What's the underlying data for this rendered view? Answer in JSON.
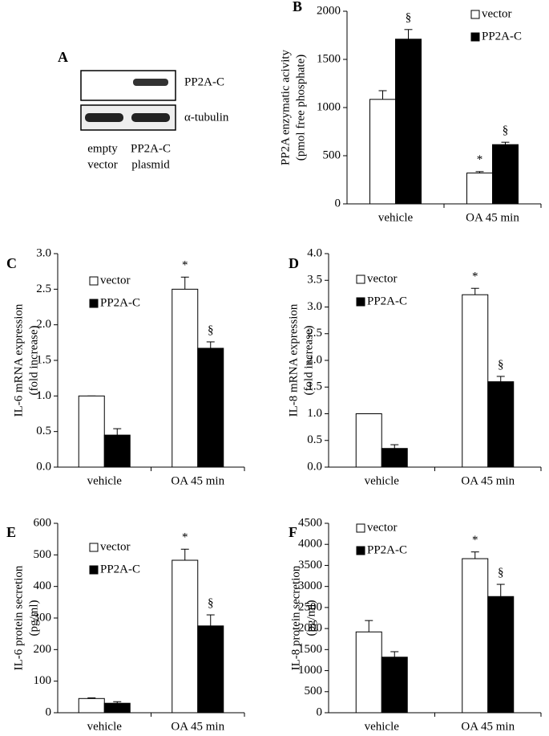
{
  "blot": {
    "label": "A",
    "rows": [
      "PP2A-C",
      "α-tubulin"
    ],
    "lanes": [
      [
        "empty",
        "vector"
      ],
      [
        "PP2A-C",
        "plasmid"
      ]
    ]
  },
  "chart_data": [
    {
      "type": "bar",
      "label": "B",
      "ylabel": [
        "PP2A enzymatic acivity",
        "(pmol free phosphate)"
      ],
      "categories": [
        "vehicle",
        "OA 45 min"
      ],
      "series": [
        {
          "name": "vector",
          "color": "#ffffff",
          "values": [
            1085,
            320
          ],
          "errors": [
            90,
            15
          ],
          "annotations": [
            null,
            "*"
          ]
        },
        {
          "name": "PP2A-C",
          "color": "#000000",
          "values": [
            1710,
            615
          ],
          "errors": [
            100,
            25
          ],
          "annotations": [
            "§",
            "§"
          ]
        }
      ],
      "ylim": [
        0,
        2000
      ],
      "yticks": [
        0,
        500,
        1000,
        1500,
        2000
      ]
    },
    {
      "type": "bar",
      "label": "C",
      "ylabel": [
        "IL-6 mRNA expression",
        "(fold increase)"
      ],
      "categories": [
        "vehicle",
        "OA 45 min"
      ],
      "series": [
        {
          "name": "vector",
          "color": "#ffffff",
          "values": [
            1.0,
            2.5
          ],
          "errors": [
            0,
            0.17
          ],
          "annotations": [
            null,
            "*"
          ]
        },
        {
          "name": "PP2A-C",
          "color": "#000000",
          "values": [
            0.45,
            1.67
          ],
          "errors": [
            0.09,
            0.09
          ],
          "annotations": [
            null,
            "§"
          ]
        }
      ],
      "ylim": [
        0,
        3
      ],
      "yticks": [
        {
          "value": 0,
          "label": "0.0"
        },
        0.5,
        {
          "value": 1,
          "label": "1.0"
        },
        1.5,
        {
          "value": 2,
          "label": "2.0"
        },
        2.5,
        {
          "value": 3,
          "label": "3.0"
        }
      ]
    },
    {
      "type": "bar",
      "label": "D",
      "ylabel": [
        "IL-8 mRNA expression",
        "(fold increase)"
      ],
      "categories": [
        "vehicle",
        "OA 45 min"
      ],
      "series": [
        {
          "name": "vector",
          "color": "#ffffff",
          "values": [
            1.0,
            3.23
          ],
          "errors": [
            0,
            0.12
          ],
          "annotations": [
            null,
            "*"
          ]
        },
        {
          "name": "PP2A-C",
          "color": "#000000",
          "values": [
            0.35,
            1.6
          ],
          "errors": [
            0.07,
            0.1
          ],
          "annotations": [
            null,
            "§"
          ]
        }
      ],
      "ylim": [
        0,
        4
      ],
      "yticks": [
        {
          "value": 0,
          "label": "0.0"
        },
        0.5,
        {
          "value": 1,
          "label": "1.0"
        },
        1.5,
        {
          "value": 2,
          "label": "2.0"
        },
        2.5,
        {
          "value": 3,
          "label": "3.0"
        },
        3.5,
        {
          "value": 4,
          "label": "4.0"
        }
      ]
    },
    {
      "type": "bar",
      "label": "E",
      "ylabel": [
        "IL-6 protein secretion",
        "(pg/ml)"
      ],
      "categories": [
        "vehicle",
        "OA 45 min"
      ],
      "series": [
        {
          "name": "vector",
          "color": "#ffffff",
          "values": [
            45,
            483
          ],
          "errors": [
            2,
            35
          ],
          "annotations": [
            null,
            "*"
          ]
        },
        {
          "name": "PP2A-C",
          "color": "#000000",
          "values": [
            30,
            275
          ],
          "errors": [
            5,
            35
          ],
          "annotations": [
            null,
            "§"
          ]
        }
      ],
      "ylim": [
        0,
        600
      ],
      "yticks": [
        0,
        100,
        200,
        300,
        400,
        500,
        600
      ]
    },
    {
      "type": "bar",
      "label": "F",
      "ylabel": [
        "IL-8 protein secretion",
        "(pg/ml)"
      ],
      "categories": [
        "vehicle",
        "OA 45 min"
      ],
      "series": [
        {
          "name": "vector",
          "color": "#ffffff",
          "values": [
            1920,
            3660
          ],
          "errors": [
            270,
            160
          ],
          "annotations": [
            null,
            "*"
          ]
        },
        {
          "name": "PP2A-C",
          "color": "#000000",
          "values": [
            1320,
            2760
          ],
          "errors": [
            130,
            290
          ],
          "annotations": [
            null,
            "§"
          ]
        }
      ],
      "ylim": [
        0,
        4500
      ],
      "yticks": [
        0,
        500,
        1000,
        1500,
        2000,
        2500,
        3000,
        3500,
        4000,
        4500
      ]
    }
  ]
}
